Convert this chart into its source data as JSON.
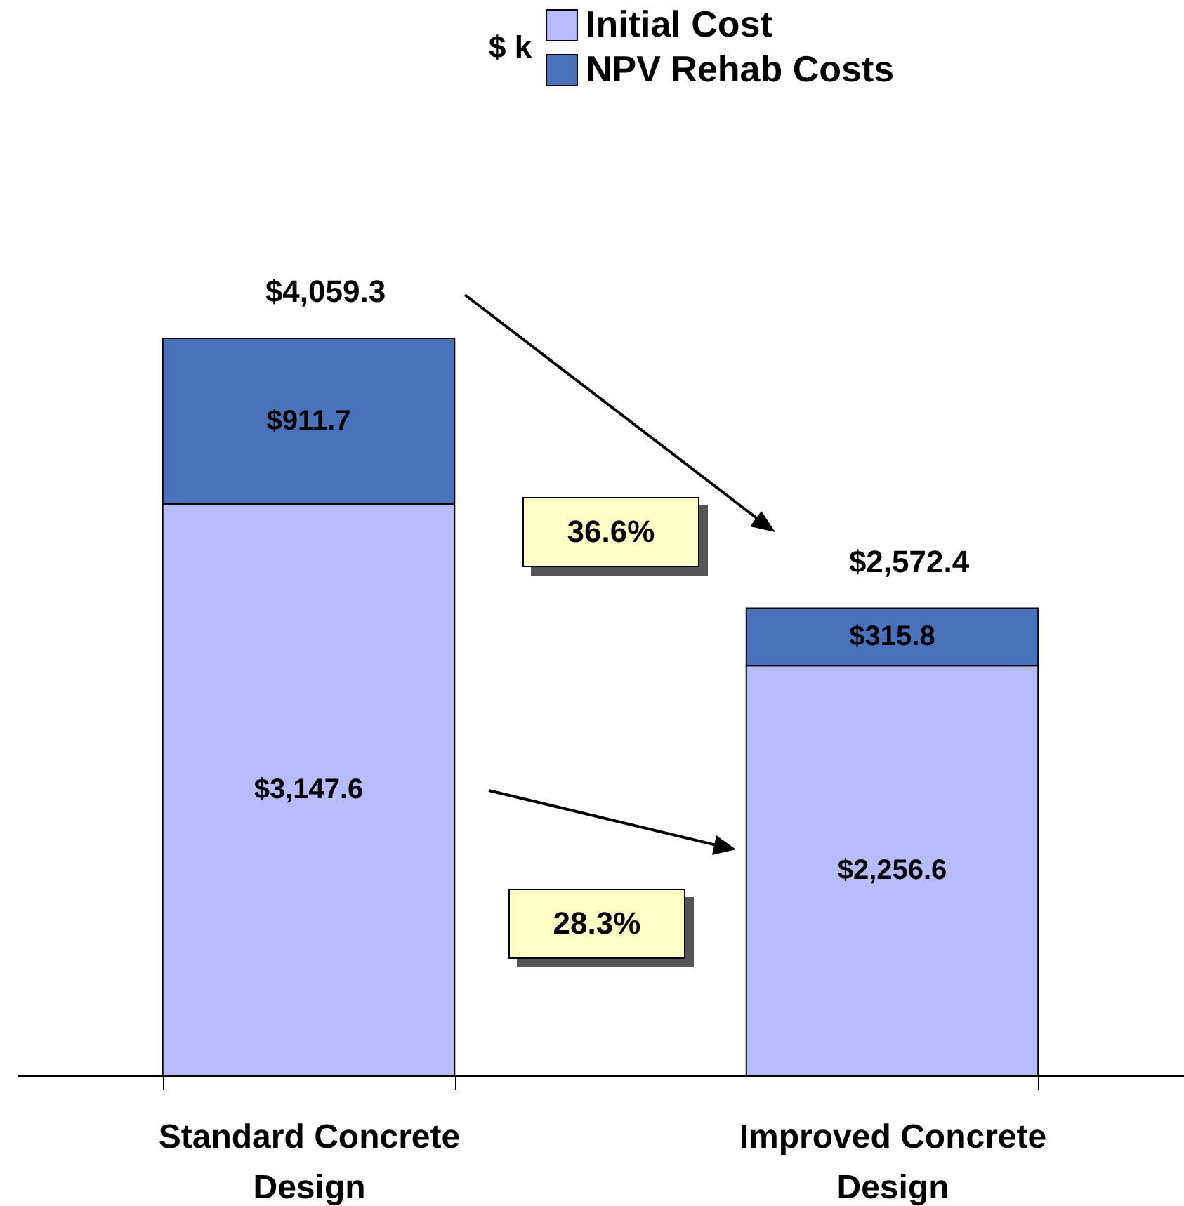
{
  "chart_data": {
    "type": "bar",
    "stacked": true,
    "legend": "top",
    "legend_title": "$ k",
    "grid": false,
    "categories": [
      "Standard Concrete Design",
      "Improved Concrete Design"
    ],
    "series": [
      {
        "name": "Initial Cost",
        "color": "#b9bbff",
        "values": [
          3147.6,
          2256.6
        ],
        "value_labels": [
          "$3,147.6",
          "$2,256.6"
        ]
      },
      {
        "name": "NPV Rehab Costs",
        "color": "#4a72ba",
        "values": [
          911.7,
          315.8
        ],
        "value_labels": [
          "$911.7",
          "$315.8"
        ]
      }
    ],
    "totals": [
      "$4,059.3",
      "$2,572.4"
    ],
    "annotations": [
      "36.6%",
      "28.3%"
    ]
  }
}
